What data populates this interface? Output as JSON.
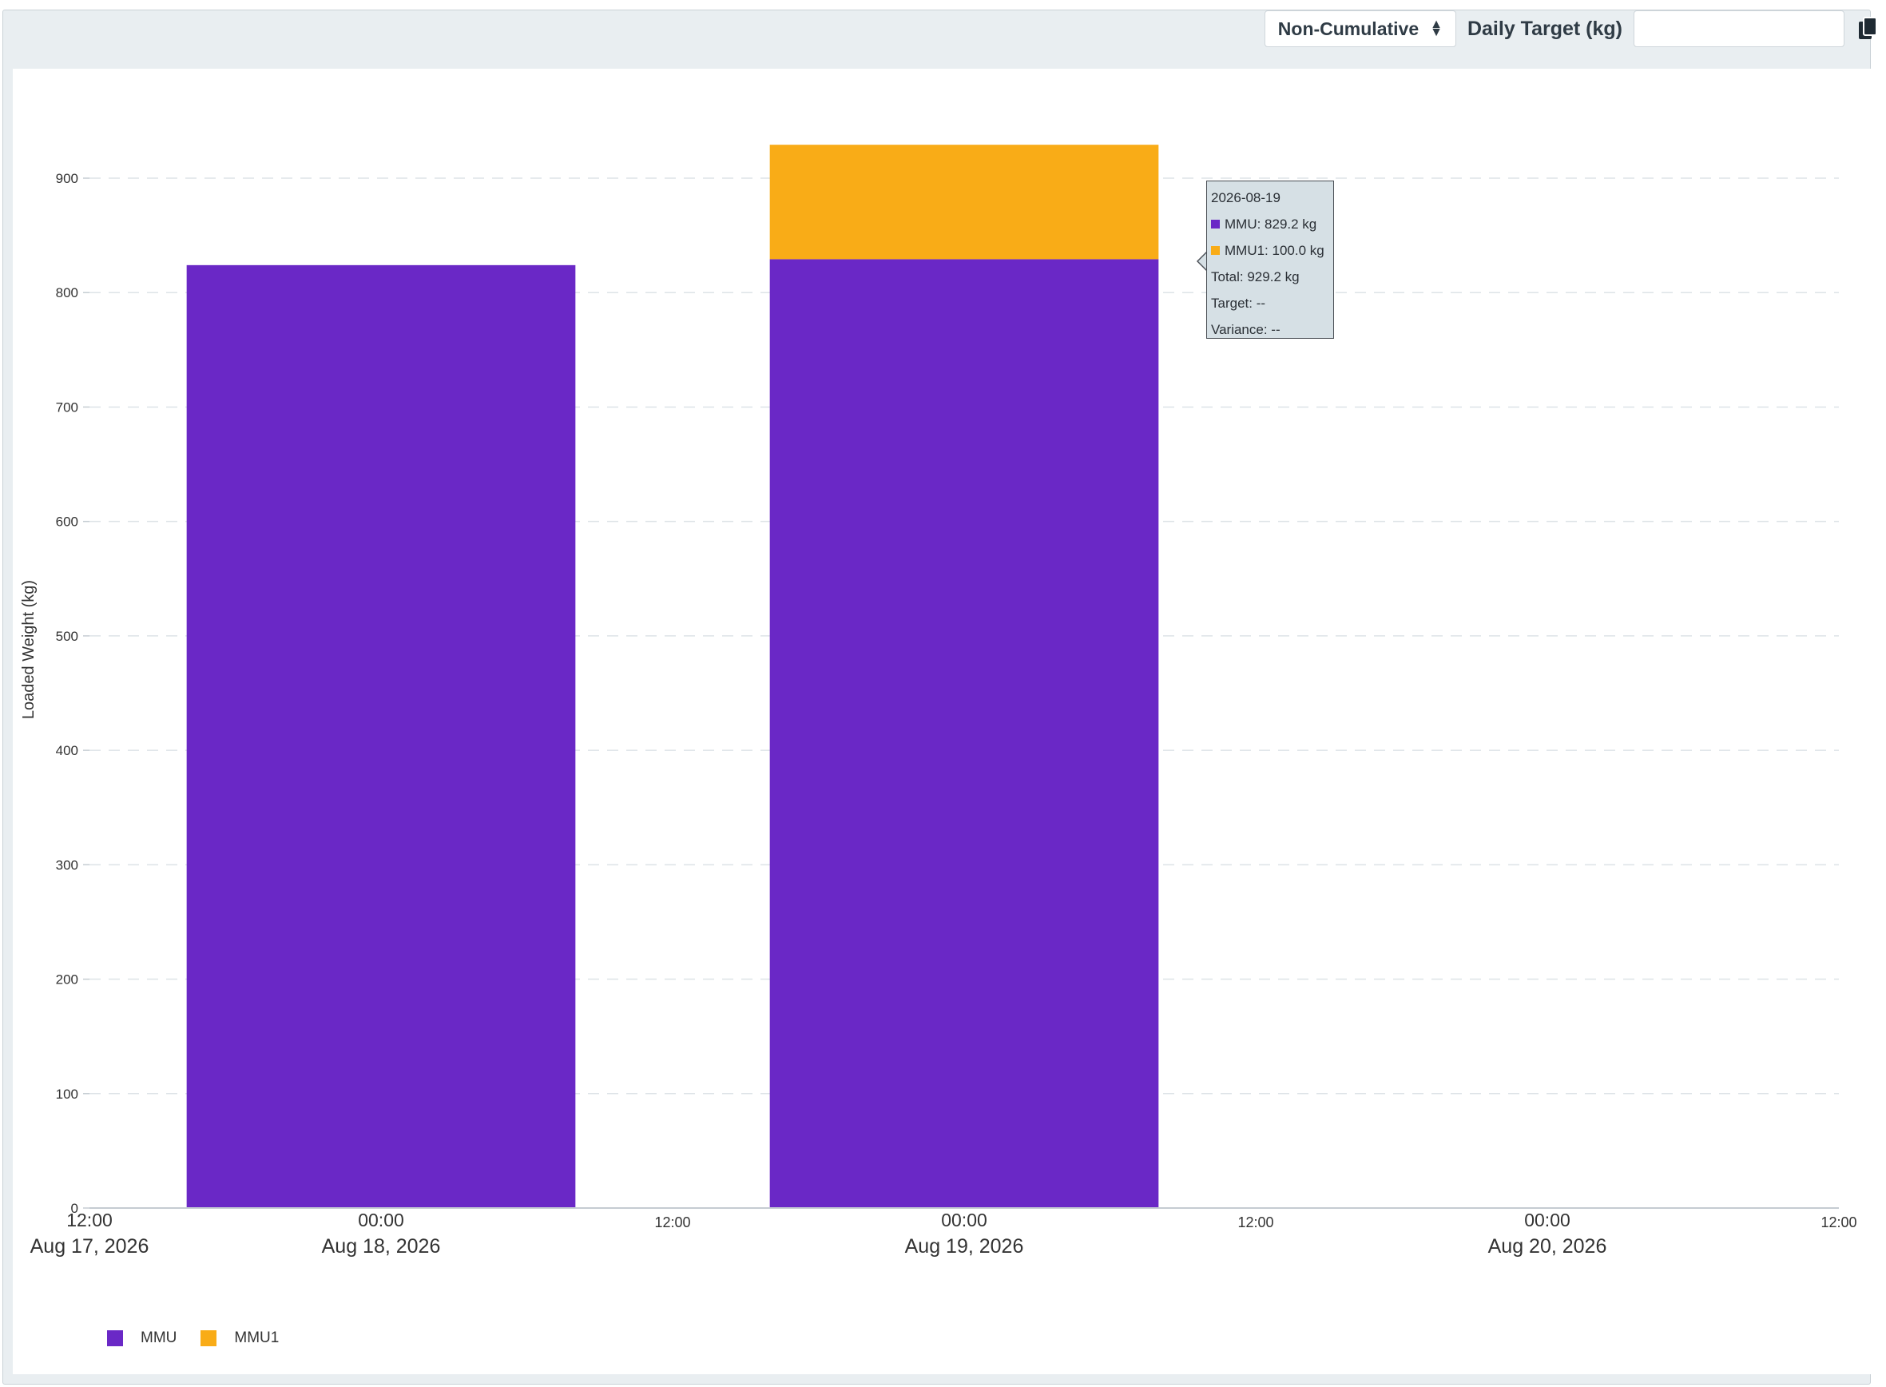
{
  "toolbar": {
    "mode_select_value": "Non-Cumulative",
    "daily_target_label": "Daily Target (kg)",
    "daily_target_value": "",
    "copy_icon": "copy-icon"
  },
  "colors": {
    "MMU": "#6a28c6",
    "MMU1": "#f9ac17",
    "grid": "#dde3e7",
    "axis": "#c5ccd2"
  },
  "chart_data": {
    "type": "bar",
    "stacked": true,
    "ylabel": "Loaded Weight (kg)",
    "ylim": [
      0,
      930
    ],
    "yticks": [
      0,
      100,
      200,
      300,
      400,
      500,
      600,
      700,
      800,
      900
    ],
    "xticks": [
      {
        "time": "2026-08-17T12:00",
        "line1": "12:00",
        "line2": "Aug 17, 2026",
        "major": true
      },
      {
        "time": "2026-08-18T00:00",
        "line1": "00:00",
        "line2": "Aug 18, 2026",
        "major": true
      },
      {
        "time": "2026-08-18T12:00",
        "line1": "12:00",
        "line2": "",
        "major": false
      },
      {
        "time": "2026-08-19T00:00",
        "line1": "00:00",
        "line2": "Aug 19, 2026",
        "major": true
      },
      {
        "time": "2026-08-19T12:00",
        "line1": "12:00",
        "line2": "",
        "major": false
      },
      {
        "time": "2026-08-20T00:00",
        "line1": "00:00",
        "line2": "Aug 20, 2026",
        "major": true
      },
      {
        "time": "2026-08-20T12:00",
        "line1": "12:00",
        "line2": "",
        "major": false
      }
    ],
    "categories": [
      "2026-08-18",
      "2026-08-19"
    ],
    "series": [
      {
        "name": "MMU",
        "values": [
          824,
          829.2
        ]
      },
      {
        "name": "MMU1",
        "values": [
          0,
          100.0
        ]
      }
    ],
    "grid": true,
    "legend": "bottom-left"
  },
  "tooltip": {
    "date": "2026-08-19",
    "mmu": "MMU: 829.2 kg",
    "mmu1": "MMU1: 100.0 kg",
    "total": "Total: 929.2 kg",
    "target": "Target: --",
    "variance": "Variance: --"
  },
  "legend": {
    "items": [
      {
        "label": "MMU"
      },
      {
        "label": "MMU1"
      }
    ]
  }
}
